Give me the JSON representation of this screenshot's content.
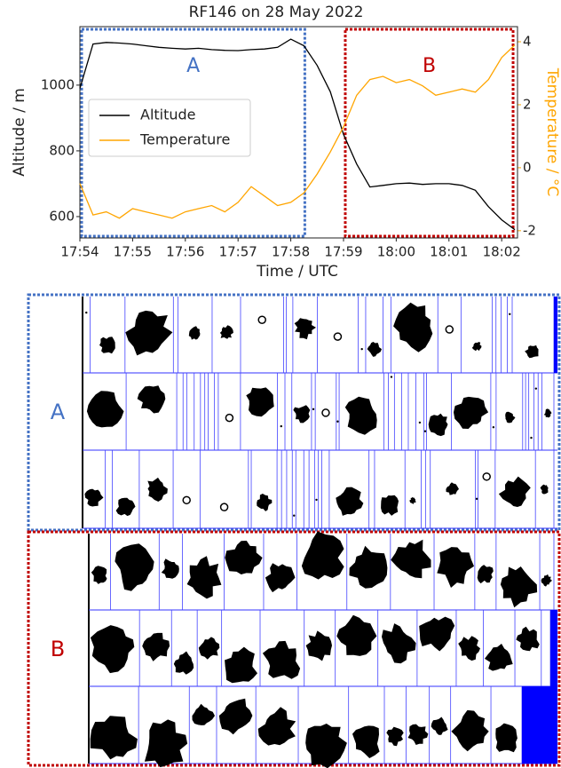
{
  "chart_data": {
    "type": "line",
    "title": "RF146 on 28 May 2022",
    "xlabel": "Time / UTC",
    "ylabel": "Altitude / m",
    "y2label": "Temperature / °C",
    "x": [
      1074,
      1074.25,
      1074.5,
      1074.75,
      1075,
      1075.25,
      1075.5,
      1075.75,
      1076,
      1076.25,
      1076.5,
      1076.75,
      1077,
      1077.25,
      1077.5,
      1077.75,
      1078,
      1078.25,
      1078.5,
      1078.75,
      1079,
      1079.25,
      1079.5,
      1079.75,
      1080,
      1080.25,
      1080.5,
      1080.75,
      1081,
      1081.25,
      1081.5,
      1081.75,
      1082,
      1082.25
    ],
    "series": [
      {
        "name": "Altitude",
        "color": "#000000",
        "values": [
          990,
          1125,
          1130,
          1128,
          1125,
          1120,
          1115,
          1112,
          1110,
          1112,
          1108,
          1106,
          1105,
          1108,
          1110,
          1115,
          1140,
          1120,
          1060,
          980,
          850,
          760,
          690,
          695,
          700,
          702,
          698,
          700,
          700,
          695,
          680,
          630,
          590,
          560
        ]
      },
      {
        "name": "Temperature",
        "color": "#ffa500",
        "axis": "y2",
        "values": [
          -0.5,
          -1.5,
          -1.4,
          -1.6,
          -1.3,
          -1.4,
          -1.5,
          -1.6,
          -1.4,
          -1.3,
          -1.2,
          -1.4,
          -1.1,
          -0.6,
          -0.9,
          -1.2,
          -1.1,
          -0.8,
          -0.2,
          0.5,
          1.3,
          2.3,
          2.8,
          2.9,
          2.7,
          2.8,
          2.6,
          2.3,
          2.4,
          2.5,
          2.4,
          2.8,
          3.5,
          3.9
        ]
      }
    ],
    "xlim": [
      1074,
      1082.3
    ],
    "xticks": [
      {
        "value": 1074,
        "label": "17:54"
      },
      {
        "value": 1075,
        "label": "17:55"
      },
      {
        "value": 1076,
        "label": "17:56"
      },
      {
        "value": 1077,
        "label": "17:57"
      },
      {
        "value": 1078,
        "label": "17:58"
      },
      {
        "value": 1079,
        "label": "17:59"
      },
      {
        "value": 1080,
        "label": "18:00"
      },
      {
        "value": 1081,
        "label": "18:01"
      },
      {
        "value": 1082,
        "label": "18:02"
      }
    ],
    "ylim": [
      535,
      1178
    ],
    "yticks": [
      600,
      800,
      1000
    ],
    "y2lim": [
      -2.23,
      4.48
    ],
    "y2ticks": [
      -2,
      0,
      2,
      4
    ],
    "legend": "center left",
    "annotations": [
      {
        "label": "A",
        "x": [
          1074,
          1078.3
        ],
        "color": "#4472c4"
      },
      {
        "label": "B",
        "x": [
          1079,
          1082.25
        ],
        "color": "#c00000"
      }
    ]
  },
  "panels": [
    {
      "label": "A",
      "color": "#4472c4"
    },
    {
      "label": "B",
      "color": "#c00000"
    }
  ]
}
